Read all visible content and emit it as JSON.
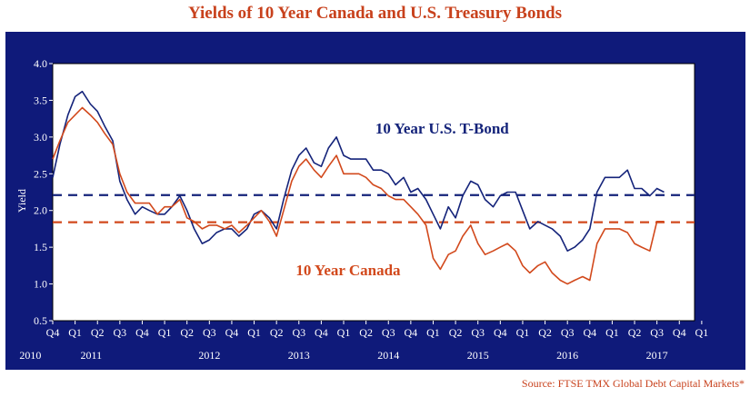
{
  "title": "Yields of 10 Year Canada and U.S. Treasury Bonds",
  "source": "Source: FTSE TMX Global Debt Capital Markets*",
  "chart_data": {
    "type": "line",
    "ylabel": "Yield",
    "ylim": [
      0.5,
      4.0
    ],
    "yticks": [
      "0.5",
      "1.0",
      "1.5",
      "2.0",
      "2.5",
      "3.0",
      "3.5",
      "4.0"
    ],
    "xlim": [
      2010.75,
      2017.92
    ],
    "quarter_ticks": [
      "Q4",
      "Q1",
      "Q2",
      "Q3",
      "Q4",
      "Q1",
      "Q2",
      "Q3",
      "Q4",
      "Q1",
      "Q2",
      "Q3",
      "Q4",
      "Q1",
      "Q2",
      "Q3",
      "Q4",
      "Q1",
      "Q2",
      "Q3",
      "Q4",
      "Q1",
      "Q2",
      "Q3",
      "Q4",
      "Q1",
      "Q2",
      "Q3",
      "Q4",
      "Q1"
    ],
    "years": [
      {
        "label": "2010",
        "at": 2010.5
      },
      {
        "label": "2011",
        "at": 2011.18
      },
      {
        "label": "2012",
        "at": 2012.5
      },
      {
        "label": "2013",
        "at": 2013.5
      },
      {
        "label": "2014",
        "at": 2014.5
      },
      {
        "label": "2015",
        "at": 2015.5
      },
      {
        "label": "2016",
        "at": 2016.5
      },
      {
        "label": "2017",
        "at": 2017.5
      }
    ],
    "grid": false,
    "series": [
      {
        "name": "10 Year U.S. T-Bond",
        "color": "#14237a",
        "average": 2.21,
        "x": [
          2010.75,
          2010.83,
          2010.92,
          2011.0,
          2011.08,
          2011.17,
          2011.25,
          2011.33,
          2011.42,
          2011.5,
          2011.58,
          2011.67,
          2011.75,
          2011.83,
          2011.92,
          2012.0,
          2012.08,
          2012.17,
          2012.25,
          2012.33,
          2012.42,
          2012.5,
          2012.58,
          2012.67,
          2012.75,
          2012.83,
          2012.92,
          2013.0,
          2013.08,
          2013.17,
          2013.25,
          2013.33,
          2013.42,
          2013.5,
          2013.58,
          2013.67,
          2013.75,
          2013.83,
          2013.92,
          2014.0,
          2014.08,
          2014.17,
          2014.25,
          2014.33,
          2014.42,
          2014.5,
          2014.58,
          2014.67,
          2014.75,
          2014.83,
          2014.92,
          2015.0,
          2015.08,
          2015.17,
          2015.25,
          2015.33,
          2015.42,
          2015.5,
          2015.58,
          2015.67,
          2015.75,
          2015.83,
          2015.92,
          2016.0,
          2016.08,
          2016.17,
          2016.25,
          2016.33,
          2016.42,
          2016.5,
          2016.58,
          2016.67,
          2016.75,
          2016.83,
          2016.92,
          2017.0,
          2017.08,
          2017.17,
          2017.25,
          2017.33,
          2017.42,
          2017.5,
          2017.58
        ],
        "values": [
          2.45,
          2.9,
          3.3,
          3.55,
          3.62,
          3.45,
          3.35,
          3.15,
          2.95,
          2.4,
          2.15,
          1.95,
          2.05,
          2.0,
          1.95,
          1.95,
          2.05,
          2.2,
          2.0,
          1.75,
          1.55,
          1.6,
          1.7,
          1.75,
          1.75,
          1.65,
          1.75,
          1.95,
          2.0,
          1.9,
          1.75,
          2.15,
          2.55,
          2.75,
          2.85,
          2.65,
          2.6,
          2.85,
          3.0,
          2.75,
          2.7,
          2.7,
          2.7,
          2.55,
          2.55,
          2.5,
          2.35,
          2.45,
          2.25,
          2.3,
          2.15,
          1.95,
          1.75,
          2.05,
          1.9,
          2.2,
          2.4,
          2.35,
          2.15,
          2.05,
          2.2,
          2.25,
          2.25,
          2.0,
          1.75,
          1.85,
          1.8,
          1.75,
          1.65,
          1.45,
          1.5,
          1.6,
          1.75,
          2.25,
          2.45,
          2.45,
          2.45,
          2.55,
          2.3,
          2.3,
          2.2,
          2.3,
          2.25
        ]
      },
      {
        "name": "10 Year Canada",
        "color": "#d2491c",
        "average": 1.84,
        "x": [
          2010.75,
          2010.83,
          2010.92,
          2011.0,
          2011.08,
          2011.17,
          2011.25,
          2011.33,
          2011.42,
          2011.5,
          2011.58,
          2011.67,
          2011.75,
          2011.83,
          2011.92,
          2012.0,
          2012.08,
          2012.17,
          2012.25,
          2012.33,
          2012.42,
          2012.5,
          2012.58,
          2012.67,
          2012.75,
          2012.83,
          2012.92,
          2013.0,
          2013.08,
          2013.17,
          2013.25,
          2013.33,
          2013.42,
          2013.5,
          2013.58,
          2013.67,
          2013.75,
          2013.83,
          2013.92,
          2014.0,
          2014.08,
          2014.17,
          2014.25,
          2014.33,
          2014.42,
          2014.5,
          2014.58,
          2014.67,
          2014.75,
          2014.83,
          2014.92,
          2015.0,
          2015.08,
          2015.17,
          2015.25,
          2015.33,
          2015.42,
          2015.5,
          2015.58,
          2015.67,
          2015.75,
          2015.83,
          2015.92,
          2016.0,
          2016.08,
          2016.17,
          2016.25,
          2016.33,
          2016.42,
          2016.5,
          2016.58,
          2016.67,
          2016.75,
          2016.83,
          2016.92,
          2017.0,
          2017.08,
          2017.17,
          2017.25,
          2017.33,
          2017.42,
          2017.5,
          2017.58
        ],
        "values": [
          2.7,
          2.95,
          3.2,
          3.3,
          3.4,
          3.3,
          3.2,
          3.05,
          2.9,
          2.5,
          2.25,
          2.1,
          2.1,
          2.1,
          1.95,
          2.05,
          2.05,
          2.15,
          1.9,
          1.85,
          1.75,
          1.8,
          1.8,
          1.75,
          1.8,
          1.7,
          1.8,
          1.9,
          2.0,
          1.85,
          1.65,
          2.0,
          2.4,
          2.6,
          2.7,
          2.55,
          2.45,
          2.6,
          2.75,
          2.5,
          2.5,
          2.5,
          2.45,
          2.35,
          2.3,
          2.2,
          2.15,
          2.15,
          2.05,
          1.95,
          1.8,
          1.35,
          1.2,
          1.4,
          1.45,
          1.65,
          1.8,
          1.55,
          1.4,
          1.45,
          1.5,
          1.55,
          1.45,
          1.25,
          1.15,
          1.25,
          1.3,
          1.15,
          1.05,
          1.0,
          1.05,
          1.1,
          1.05,
          1.55,
          1.75,
          1.75,
          1.75,
          1.7,
          1.55,
          1.5,
          1.45,
          1.85,
          1.85
        ]
      }
    ],
    "annotations": [
      {
        "text": "10 Year U.S. T-Bond",
        "color": "#14237a",
        "x": 2015.1,
        "y": 3.05
      },
      {
        "text": "10 Year Canada",
        "color": "#d2491c",
        "x": 2014.05,
        "y": 1.12
      }
    ]
  }
}
